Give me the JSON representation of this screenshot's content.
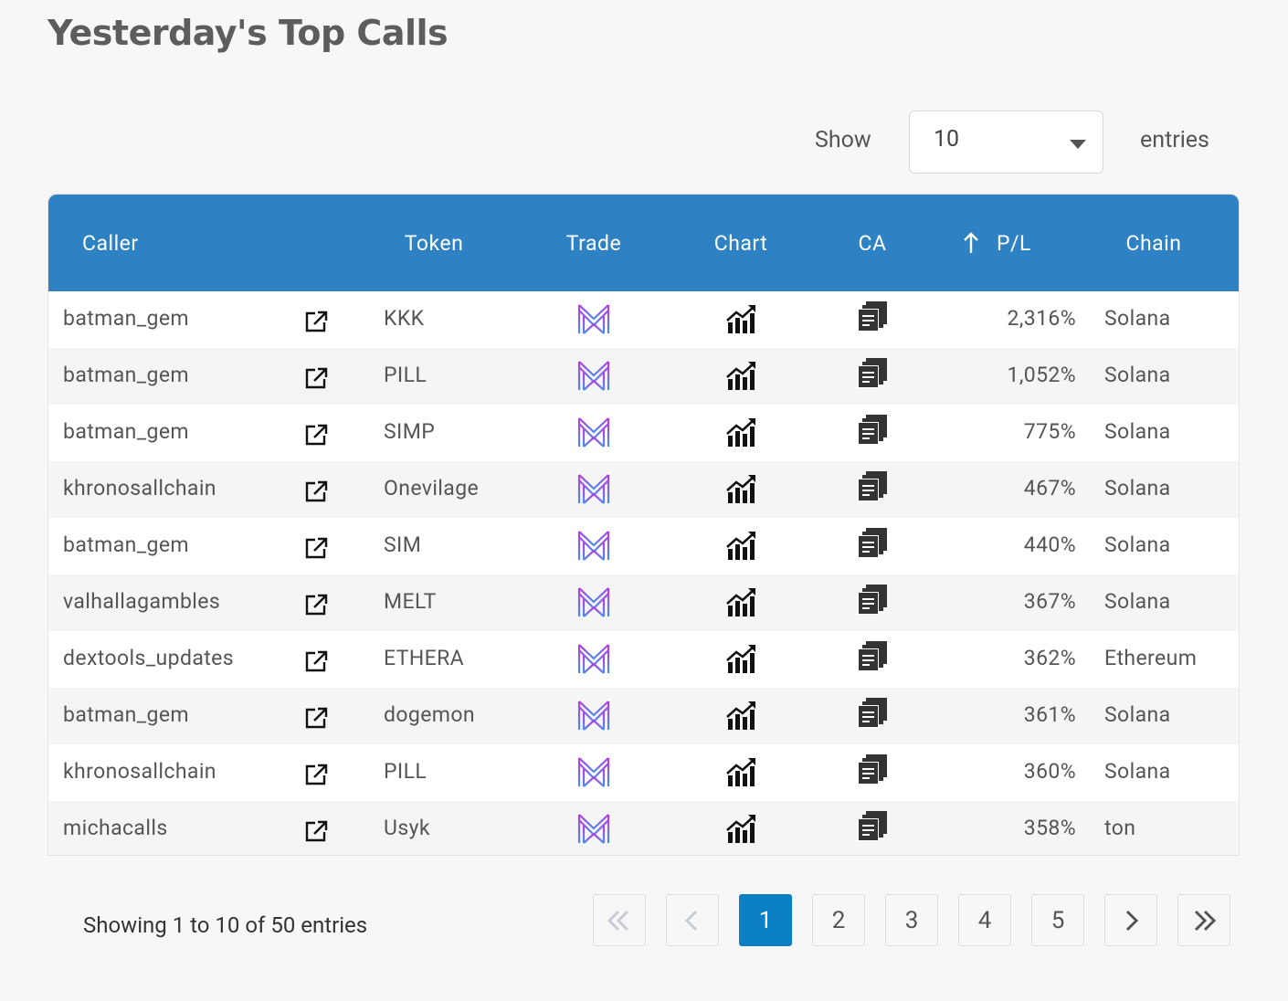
{
  "header": {
    "title": "Yesterday's Top Calls"
  },
  "length_menu": {
    "label_before": "Show",
    "selected": "10",
    "label_after": "entries"
  },
  "table": {
    "columns": [
      "Caller",
      "Token",
      "Trade",
      "Chart",
      "CA",
      "P/L",
      "Chain"
    ],
    "rows": [
      {
        "caller": "batman_gem",
        "token": "KKK",
        "pl": "2,316%",
        "chain": "Solana"
      },
      {
        "caller": "batman_gem",
        "token": "PILL",
        "pl": "1,052%",
        "chain": "Solana"
      },
      {
        "caller": "batman_gem",
        "token": "SIMP",
        "pl": "775%",
        "chain": "Solana"
      },
      {
        "caller": "khronosallchain",
        "token": "Onevilage",
        "pl": "467%",
        "chain": "Solana"
      },
      {
        "caller": "batman_gem",
        "token": "SIM",
        "pl": "440%",
        "chain": "Solana"
      },
      {
        "caller": "valhallagambles",
        "token": "MELT",
        "pl": "367%",
        "chain": "Solana"
      },
      {
        "caller": "dextools_updates",
        "token": "ETHERA",
        "pl": "362%",
        "chain": "Ethereum"
      },
      {
        "caller": "batman_gem",
        "token": "dogemon",
        "pl": "361%",
        "chain": "Solana"
      },
      {
        "caller": "khronosallchain",
        "token": "PILL",
        "pl": "360%",
        "chain": "Solana"
      },
      {
        "caller": "michacalls",
        "token": "Usyk",
        "pl": "358%",
        "chain": "ton"
      }
    ]
  },
  "footer": {
    "info": "Showing 1 to 10 of 50 entries",
    "pages": [
      1,
      2,
      3,
      4,
      5
    ],
    "current_page": 1
  }
}
